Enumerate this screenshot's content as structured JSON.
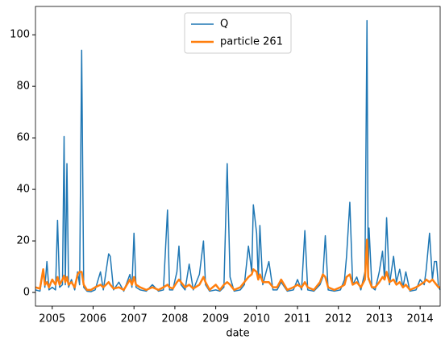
{
  "chart_data": {
    "type": "line",
    "xlabel": "date",
    "x": [
      2004.59,
      2004.7,
      2004.78,
      2004.82,
      2004.87,
      2004.92,
      2005.0,
      2005.08,
      2005.13,
      2005.18,
      2005.25,
      2005.29,
      2005.32,
      2005.36,
      2005.4,
      2005.47,
      2005.55,
      2005.62,
      2005.67,
      2005.72,
      2005.77,
      2005.85,
      2005.95,
      2006.05,
      2006.18,
      2006.25,
      2006.38,
      2006.42,
      2006.5,
      2006.63,
      2006.75,
      2006.9,
      2006.95,
      2007.0,
      2007.05,
      2007.15,
      2007.3,
      2007.45,
      2007.6,
      2007.72,
      2007.82,
      2007.87,
      2007.95,
      2008.05,
      2008.1,
      2008.15,
      2008.25,
      2008.35,
      2008.45,
      2008.6,
      2008.7,
      2008.75,
      2008.85,
      2009.0,
      2009.1,
      2009.2,
      2009.28,
      2009.35,
      2009.45,
      2009.6,
      2009.7,
      2009.8,
      2009.88,
      2009.92,
      2010.0,
      2010.04,
      2010.08,
      2010.15,
      2010.3,
      2010.4,
      2010.5,
      2010.6,
      2010.75,
      2010.9,
      2011.0,
      2011.1,
      2011.18,
      2011.25,
      2011.4,
      2011.55,
      2011.62,
      2011.68,
      2011.75,
      2011.9,
      2012.05,
      2012.15,
      2012.2,
      2012.28,
      2012.35,
      2012.45,
      2012.55,
      2012.65,
      2012.7,
      2012.73,
      2012.75,
      2012.82,
      2012.9,
      2013.0,
      2013.08,
      2013.13,
      2013.18,
      2013.25,
      2013.35,
      2013.42,
      2013.5,
      2013.58,
      2013.65,
      2013.75,
      2013.9,
      2014.0,
      2014.1,
      2014.15,
      2014.23,
      2014.3,
      2014.35,
      2014.4,
      2014.45,
      2014.49
    ],
    "series": [
      {
        "name": "Q",
        "color": "#1f77b4",
        "values": [
          1,
          0.5,
          9,
          2,
          12,
          1,
          2,
          1,
          28,
          2,
          3,
          60.5,
          3,
          50,
          2,
          5,
          1,
          8,
          3,
          94,
          2,
          0.5,
          0.3,
          1,
          8,
          1,
          15,
          14,
          1,
          4,
          0.5,
          7,
          2,
          23,
          2,
          1,
          0.5,
          3,
          0.5,
          1,
          32,
          1,
          1,
          8,
          18,
          3,
          1,
          11,
          1,
          7,
          20,
          3,
          0.5,
          1,
          0.5,
          2,
          50,
          6,
          0.5,
          1,
          3,
          18,
          8,
          34,
          23,
          5,
          26,
          3,
          12,
          1,
          1,
          4,
          0.5,
          1,
          5,
          1,
          24,
          1,
          0.5,
          3,
          6,
          22,
          1,
          0.5,
          1,
          5,
          14,
          35,
          3,
          6,
          1,
          8,
          105.5,
          5,
          25,
          2,
          1,
          8,
          16,
          5,
          29,
          3,
          14,
          4,
          9,
          2,
          8,
          0.5,
          1,
          5,
          3,
          9,
          23,
          5,
          12,
          12,
          2,
          1
        ]
      },
      {
        "name": "particle 261",
        "color": "#ff7f0e",
        "values": [
          2,
          1.5,
          9,
          3,
          4,
          2,
          5,
          3,
          6,
          3,
          5,
          6.5,
          4,
          6,
          3,
          4,
          2,
          7,
          8,
          8,
          3,
          1,
          1,
          2,
          3,
          2,
          4,
          3,
          1.5,
          2,
          1,
          5,
          3,
          6,
          3,
          2,
          1,
          2,
          1,
          2,
          3,
          2,
          1.5,
          4,
          5,
          4,
          2,
          3,
          1.5,
          3,
          6,
          4,
          1,
          3,
          1,
          3,
          4,
          3,
          1,
          2,
          4,
          6,
          7,
          9,
          8,
          5,
          7,
          4,
          4,
          2,
          2,
          5,
          1,
          2,
          3,
          2,
          4,
          2,
          1,
          4,
          7,
          6,
          2,
          1,
          2,
          3,
          6,
          7,
          3,
          4,
          2,
          5,
          20.5,
          6,
          5,
          2,
          2,
          4,
          6,
          5,
          8,
          4,
          5,
          3,
          4,
          2,
          3,
          1,
          2,
          3,
          4,
          5,
          4,
          5,
          4,
          3,
          2,
          2
        ]
      }
    ],
    "xlim": [
      2004.59,
      2014.49
    ],
    "xticks": [
      2005,
      2006,
      2007,
      2008,
      2009,
      2010,
      2011,
      2012,
      2013,
      2014
    ],
    "ylim": [
      -5.3,
      111
    ],
    "yticks": [
      0,
      20,
      40,
      60,
      80,
      100
    ],
    "legend": "upper center"
  }
}
